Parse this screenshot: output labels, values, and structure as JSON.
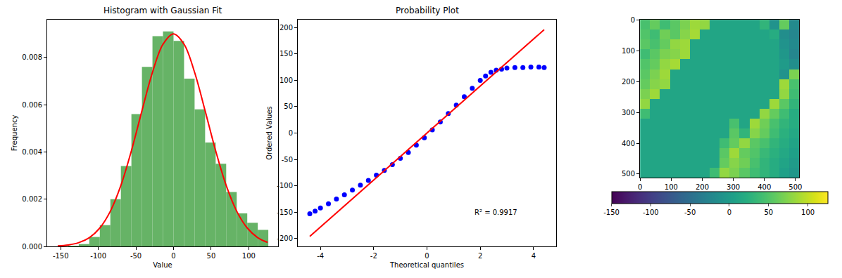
{
  "chart_data": [
    {
      "type": "histogram",
      "title": "Histogram with Gaussian Fit",
      "x_label": "Value",
      "y_label": "Frequency",
      "bins": [
        -154,
        -140,
        -126,
        -112,
        -98,
        -84,
        -70,
        -56,
        -42,
        -28,
        -14,
        0,
        14,
        28,
        42,
        56,
        70,
        84,
        98,
        112,
        126
      ],
      "counts": [
        1e-05,
        3e-05,
        0.0001,
        0.0004,
        0.0009,
        0.002,
        0.0034,
        0.0056,
        0.0076,
        0.0089,
        0.0091,
        0.0087,
        0.0071,
        0.0058,
        0.0044,
        0.0035,
        0.0023,
        0.0014,
        0.001,
        0.0007
      ],
      "color": "#66b366",
      "series": [
        {
          "type": "line",
          "color": "#ff0000",
          "x": [
            -154,
            -140,
            -126,
            -112,
            -98,
            -84,
            -70,
            -56,
            -42,
            -28,
            -14,
            0,
            14,
            28,
            42,
            56,
            70,
            84,
            98,
            112,
            125
          ],
          "values": [
            2e-05,
            6e-05,
            0.00016,
            0.00037,
            0.00078,
            0.00149,
            0.00258,
            0.00405,
            0.00574,
            0.00737,
            0.00856,
            0.009,
            0.00856,
            0.00737,
            0.00574,
            0.00405,
            0.00258,
            0.00149,
            0.00078,
            0.00037,
            0.00017
          ]
        }
      ],
      "xlim": [
        -168,
        139
      ],
      "xticks": [
        -150,
        -100,
        -50,
        0,
        50,
        100
      ],
      "ylim": [
        0,
        0.0096
      ],
      "yticks": [
        {
          "value": 0,
          "label": "0.000"
        },
        {
          "value": 0.002,
          "label": "0.002"
        },
        {
          "value": 0.004,
          "label": "0.004"
        },
        {
          "value": 0.006,
          "label": "0.006"
        },
        {
          "value": 0.008,
          "label": "0.008"
        }
      ],
      "grid": false
    },
    {
      "type": "scatter",
      "title": "Probability Plot",
      "x_label": "Theoretical quantiles",
      "y_label": "Ordered Values",
      "series": [
        {
          "type": "scatter",
          "color": "#0000ff",
          "marker": "circle",
          "x": [
            -4.4,
            -4.2,
            -4,
            -3.7,
            -3.4,
            -3.1,
            -2.8,
            -2.5,
            -2.2,
            -1.9,
            -1.6,
            -1.3,
            -1,
            -0.7,
            -0.4,
            -0.1,
            0.2,
            0.5,
            0.8,
            1.1,
            1.4,
            1.7,
            2,
            2.2,
            2.4,
            2.6,
            2.8,
            3,
            3.3,
            3.6,
            3.9,
            4.2,
            4.4
          ],
          "values": [
            -153,
            -148,
            -142,
            -134,
            -125,
            -117,
            -108,
            -99,
            -90,
            -80,
            -71,
            -60,
            -48,
            -37,
            -23,
            -9,
            6,
            21,
            37,
            53,
            69,
            85,
            100,
            108,
            115,
            119,
            121,
            123,
            124,
            124,
            125,
            125,
            124
          ]
        },
        {
          "type": "line",
          "color": "#ff0000",
          "x": [
            -4.4,
            4.4
          ],
          "values": [
            -196,
            196
          ]
        }
      ],
      "annotations": [
        {
          "text": "R² = 0.9917",
          "x": 2.6,
          "y": -150
        }
      ],
      "xlim": [
        -4.85,
        4.85
      ],
      "xticks": [
        -4,
        -2,
        0,
        2,
        4
      ],
      "ylim": [
        -215,
        215
      ],
      "yticks": [
        -200,
        -150,
        -100,
        -50,
        0,
        50,
        100,
        150,
        200
      ],
      "grid": false
    },
    {
      "type": "heatmap",
      "color": "Viridis",
      "x": [
        16,
        48,
        80,
        112,
        144,
        176,
        208,
        240,
        272,
        304,
        336,
        368,
        400,
        432,
        464,
        496
      ],
      "y": [
        16,
        48,
        80,
        112,
        144,
        176,
        208,
        240,
        272,
        304,
        336,
        368,
        400,
        432,
        464,
        496
      ],
      "cells": [
        [
          45,
          60,
          40,
          55,
          70,
          85,
          80,
          12,
          12,
          12,
          12,
          12,
          30,
          -10,
          60,
          -20
        ],
        [
          50,
          40,
          65,
          55,
          75,
          88,
          12,
          12,
          12,
          12,
          12,
          12,
          12,
          20,
          -15,
          -25
        ],
        [
          55,
          45,
          60,
          80,
          85,
          12,
          12,
          12,
          12,
          12,
          12,
          12,
          12,
          12,
          -10,
          -20
        ],
        [
          40,
          55,
          70,
          75,
          85,
          12,
          12,
          12,
          12,
          12,
          12,
          12,
          12,
          12,
          -5,
          -25
        ],
        [
          50,
          60,
          80,
          88,
          12,
          12,
          12,
          12,
          12,
          12,
          12,
          12,
          12,
          12,
          0,
          -15
        ],
        [
          55,
          70,
          85,
          12,
          12,
          12,
          12,
          12,
          12,
          12,
          12,
          12,
          12,
          12,
          -10,
          70
        ],
        [
          60,
          75,
          80,
          12,
          12,
          12,
          12,
          12,
          12,
          12,
          12,
          12,
          12,
          12,
          85,
          45
        ],
        [
          70,
          85,
          12,
          12,
          12,
          12,
          12,
          12,
          12,
          12,
          12,
          12,
          12,
          12,
          80,
          40
        ],
        [
          80,
          12,
          12,
          12,
          12,
          12,
          12,
          12,
          12,
          12,
          12,
          12,
          12,
          85,
          55,
          30
        ],
        [
          40,
          12,
          12,
          12,
          12,
          12,
          12,
          12,
          12,
          12,
          12,
          12,
          80,
          60,
          40,
          20
        ],
        [
          12,
          12,
          12,
          12,
          12,
          12,
          12,
          12,
          12,
          45,
          12,
          85,
          65,
          45,
          30,
          20
        ],
        [
          12,
          12,
          12,
          12,
          12,
          12,
          12,
          12,
          12,
          55,
          30,
          75,
          60,
          40,
          25,
          15
        ],
        [
          12,
          12,
          12,
          12,
          12,
          12,
          12,
          12,
          40,
          60,
          80,
          55,
          45,
          30,
          20,
          10
        ],
        [
          12,
          12,
          12,
          12,
          12,
          12,
          12,
          12,
          55,
          85,
          60,
          50,
          35,
          25,
          15,
          5
        ],
        [
          12,
          12,
          12,
          12,
          12,
          12,
          12,
          12,
          60,
          75,
          65,
          45,
          30,
          20,
          10,
          0
        ],
        [
          12,
          12,
          12,
          12,
          12,
          12,
          12,
          40,
          80,
          70,
          55,
          40,
          30,
          20,
          5,
          -5
        ]
      ],
      "xlim": [
        -0.5,
        511.5
      ],
      "xticks": [
        0,
        100,
        200,
        300,
        400,
        500
      ],
      "ylim": [
        511.5,
        -0.5
      ],
      "yticks": [
        0,
        100,
        200,
        300,
        400,
        500
      ],
      "colorbar_range": [
        -150,
        125
      ],
      "colorbar_ticks": [
        -150,
        -100,
        -50,
        0,
        50,
        100
      ],
      "grid": false
    }
  ]
}
